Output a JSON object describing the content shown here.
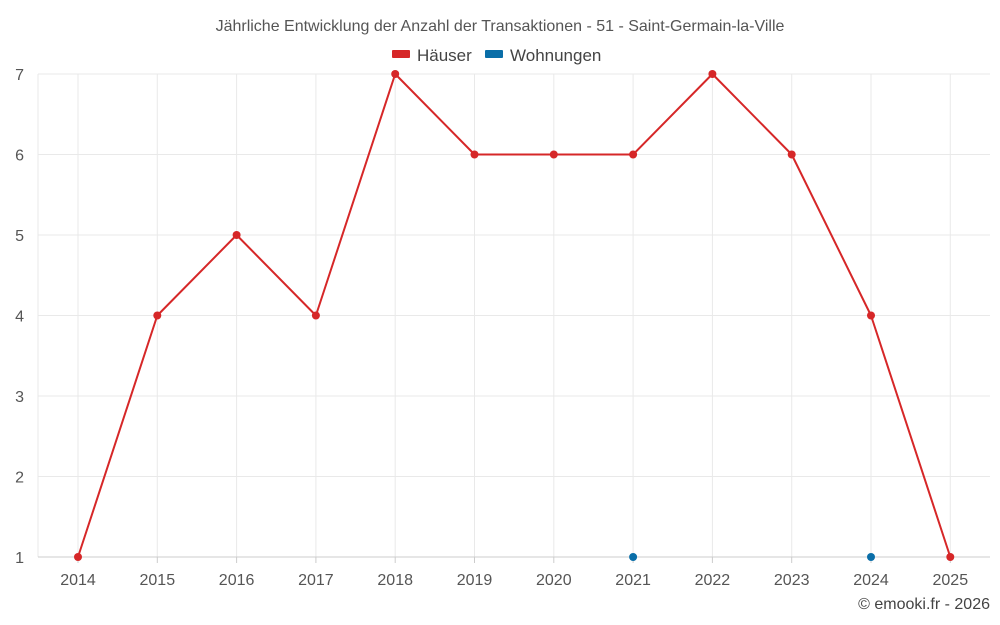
{
  "chart_data": {
    "type": "line",
    "title": "Jährliche Entwicklung der Anzahl der Transaktionen - 51 - Saint-Germain-la-Ville",
    "categories": [
      "2014",
      "2015",
      "2016",
      "2017",
      "2018",
      "2019",
      "2020",
      "2021",
      "2022",
      "2023",
      "2024",
      "2025"
    ],
    "series": [
      {
        "name": "Häuser",
        "color": "#d62728",
        "values": [
          1,
          4,
          5,
          4,
          7,
          6,
          6,
          6,
          7,
          6,
          4,
          1
        ]
      },
      {
        "name": "Wohnungen",
        "color": "#0a6ea8",
        "values": [
          null,
          null,
          null,
          null,
          null,
          null,
          null,
          1,
          null,
          null,
          1,
          null
        ]
      }
    ],
    "ylim": [
      1,
      7
    ],
    "yticks": [
      1,
      2,
      3,
      4,
      5,
      6,
      7
    ],
    "xlabel": "",
    "ylabel": "",
    "grid": true,
    "legend": "top-center"
  },
  "credit": "© emooki.fr - 2026"
}
